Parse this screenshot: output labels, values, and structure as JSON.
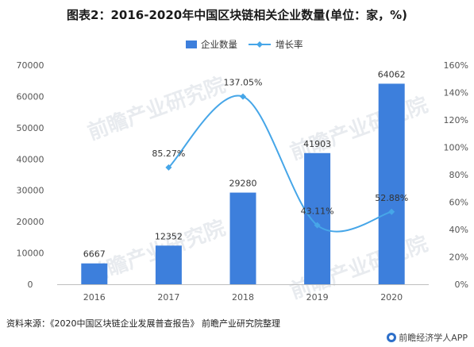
{
  "title": "图表2：2016-2020年中国区块链相关企业数量(单位：家，%)",
  "source_note": "资料来源：《2020中国区块链企业发展普查报告》 前瞻产业研究院整理",
  "brand_text": "前瞻经济学人APP",
  "watermark_text": "前瞻产业研究院",
  "colors": {
    "bar": "#3d7fdc",
    "line": "#46a6e8",
    "axis": "#bfbfbf"
  },
  "chart_data": {
    "type": "bar",
    "title": "图表2：2016-2020年中国区块链相关企业数量(单位：家，%)",
    "categories": [
      "2016",
      "2017",
      "2018",
      "2019",
      "2020"
    ],
    "series": [
      {
        "name": "企业数量",
        "type": "bar",
        "axis": "left",
        "values": [
          6667,
          12352,
          29280,
          41903,
          64062
        ],
        "labels": [
          "6667",
          "12352",
          "29280",
          "41903",
          "64062"
        ]
      },
      {
        "name": "增长率",
        "type": "line",
        "axis": "right",
        "smooth": true,
        "values": [
          null,
          85.27,
          137.05,
          43.11,
          52.88
        ],
        "labels": [
          null,
          "85.27%",
          "137.05%",
          "43.11%",
          "52.88%"
        ]
      }
    ],
    "ylim_left": [
      0,
      70000
    ],
    "yticks_left": [
      "0",
      "10000",
      "20000",
      "30000",
      "40000",
      "50000",
      "60000",
      "70000"
    ],
    "ylim_right": [
      0,
      160
    ],
    "yticks_right": [
      "0%",
      "20%",
      "40%",
      "60%",
      "80%",
      "100%",
      "120%",
      "140%",
      "160%"
    ],
    "legend_position": "top-center",
    "grid": false
  }
}
